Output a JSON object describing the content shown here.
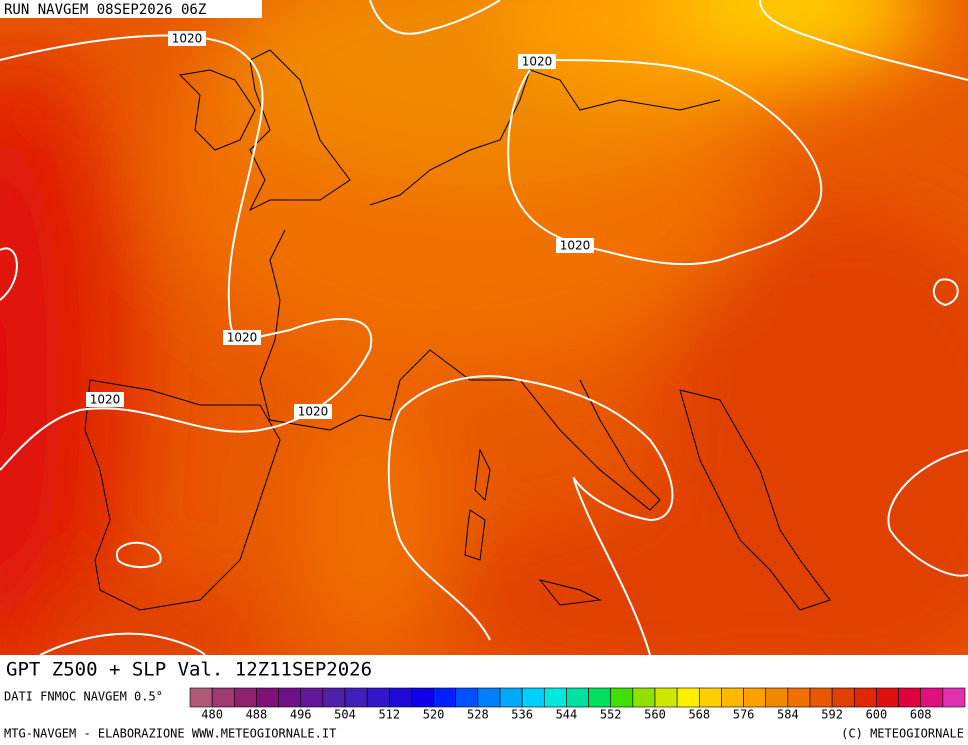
{
  "header": {
    "run": "RUN NAVGEM 08SEP2026 06Z"
  },
  "contour_labels": [
    "1020",
    "1020",
    "1020",
    "1020",
    "1020",
    "1020"
  ],
  "title": "GPT Z500 + SLP Val. 12Z11SEP2026",
  "legend": {
    "label": "DATI FNMOC NAVGEM 0.5°",
    "lim": [
      476,
      616
    ],
    "colors": [
      "#b05a78",
      "#a03a72",
      "#902070",
      "#80107a",
      "#701088",
      "#601898",
      "#5020a8",
      "#4020b8",
      "#3018c8",
      "#2008d8",
      "#1000e8",
      "#0020ff",
      "#0050ff",
      "#0080ff",
      "#00a8ff",
      "#00d0ff",
      "#00e8e0",
      "#00e0a0",
      "#00e060",
      "#40e000",
      "#90e000",
      "#d0e800",
      "#fff000",
      "#ffd000",
      "#ffb800",
      "#ffa000",
      "#f08800",
      "#f07000",
      "#e85800",
      "#e04000",
      "#e02800",
      "#e01010",
      "#e00040",
      "#e01080",
      "#e030b0"
    ],
    "ticks": [
      480,
      488,
      496,
      504,
      512,
      520,
      528,
      536,
      544,
      552,
      560,
      568,
      576,
      584,
      592,
      600,
      608
    ]
  },
  "footer": {
    "left": "MTG-NAVGEM - ELABORAZIONE WWW.METEOGIORNALE.IT",
    "right": "(C) METEOGIORNALE"
  }
}
